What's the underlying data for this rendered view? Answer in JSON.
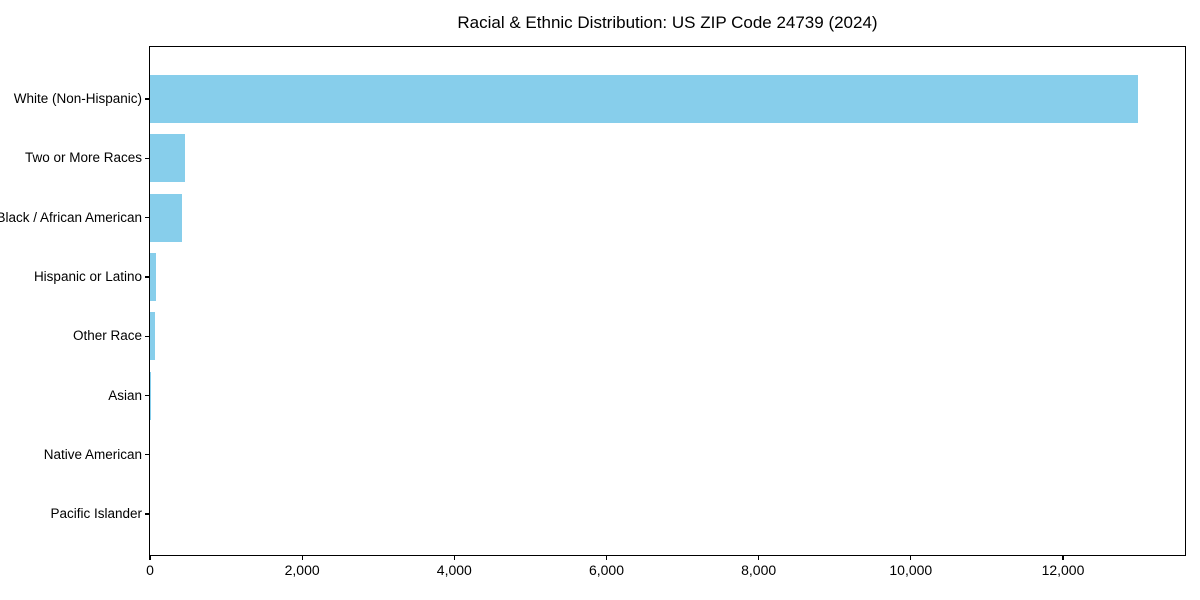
{
  "title": "Racial & Ethnic Distribution: US ZIP Code 24739 (2024)",
  "colors": {
    "bar": "#87CEEB",
    "spine": "#000000",
    "text": "#000000",
    "background": "#FFFFFF"
  },
  "chart_data": {
    "type": "bar",
    "orientation": "horizontal",
    "title": "Racial & Ethnic Distribution: US ZIP Code 24739 (2024)",
    "categories": [
      "White (Non-Hispanic)",
      "Two or More Races",
      "Black / African American",
      "Hispanic or Latino",
      "Other Race",
      "Asian",
      "Native American",
      "Pacific Islander"
    ],
    "values": [
      12990,
      460,
      420,
      80,
      65,
      13,
      0,
      0
    ],
    "xlabel": "",
    "ylabel": "",
    "xlim": [
      0,
      13630
    ],
    "x_ticks": [
      0,
      2000,
      4000,
      6000,
      8000,
      10000,
      12000
    ],
    "x_tick_labels": [
      "0",
      "2,000",
      "4,000",
      "6,000",
      "8,000",
      "10,000",
      "12,000"
    ],
    "grid": false,
    "legend": null,
    "bar_color": "#87CEEB"
  }
}
